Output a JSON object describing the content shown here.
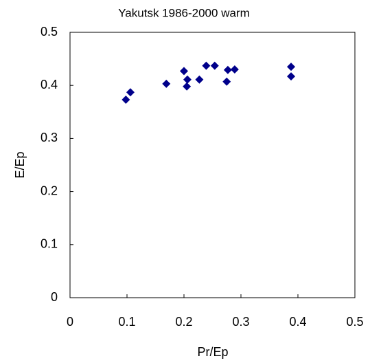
{
  "chart_data": {
    "type": "scatter",
    "title": "Yakutsk 1986-2000 warm",
    "x_label": "Pr/Ep",
    "y_label": "E/Ep",
    "series": [
      {
        "color": "#00008b",
        "x": [
          0.098,
          0.106,
          0.169,
          0.2,
          0.206,
          0.205,
          0.227,
          0.239,
          0.254,
          0.277,
          0.275,
          0.289,
          0.388,
          0.388
        ],
        "values": [
          0.373,
          0.387,
          0.403,
          0.427,
          0.411,
          0.398,
          0.411,
          0.437,
          0.437,
          0.429,
          0.407,
          0.43,
          0.435,
          0.417
        ]
      }
    ],
    "xlim": [
      0,
      0.5
    ],
    "xticks": [
      0,
      0.1,
      0.2,
      0.3,
      0.4,
      0.5
    ],
    "ylim": [
      0,
      0.5
    ],
    "yticks": [
      0,
      0.1,
      0.2,
      0.3,
      0.4,
      0.5
    ]
  }
}
